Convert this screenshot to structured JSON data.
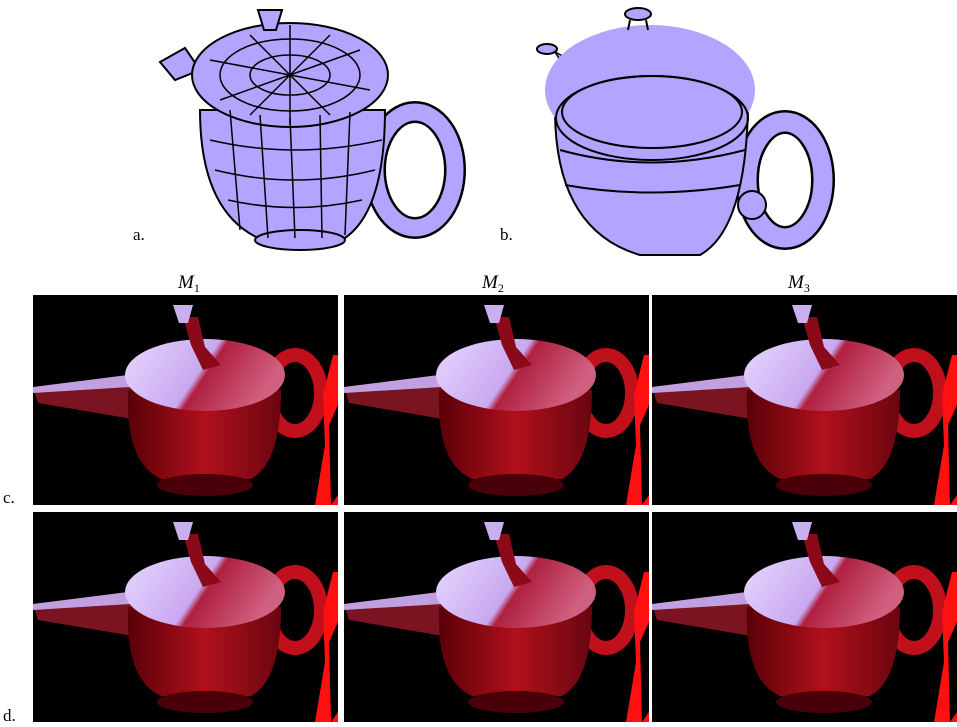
{
  "panels": [
    {
      "label": "a."
    },
    {
      "label": "b."
    }
  ],
  "rows": [
    {
      "label": "c."
    },
    {
      "label": "d."
    }
  ],
  "column_headers": [
    {
      "symbol": "M",
      "subscript": "1"
    },
    {
      "symbol": "M",
      "subscript": "2"
    },
    {
      "symbol": "M",
      "subscript": "3"
    }
  ]
}
